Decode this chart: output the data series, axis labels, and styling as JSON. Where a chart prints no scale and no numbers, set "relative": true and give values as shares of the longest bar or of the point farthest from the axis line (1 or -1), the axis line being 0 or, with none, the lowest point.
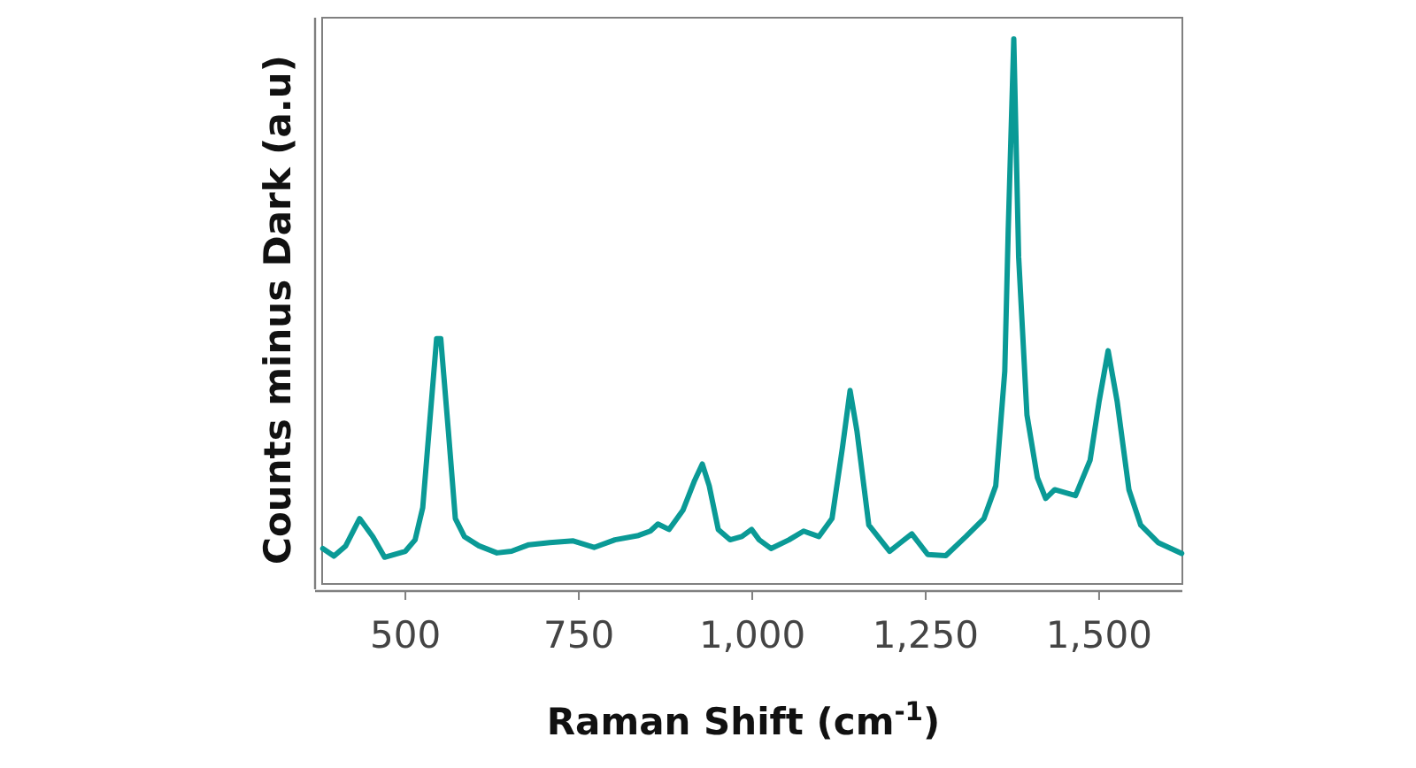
{
  "chart_data": {
    "type": "line",
    "relative": true,
    "xlabel": "Raman Shift (cm$^{-1}$)",
    "ylabel": "Counts minus Dark (a.u)",
    "xlim": [
      380,
      1620
    ],
    "xticks": [
      500,
      750,
      {
        "value": 1000,
        "label": "1,000"
      },
      {
        "value": 1250,
        "label": "1,250"
      },
      {
        "value": 1500,
        "label": "1,500"
      }
    ],
    "grid": false,
    "marker": "none",
    "line_style": "solid",
    "series": [
      {
        "color": "#0a9a96",
        "x": [
          381,
          397,
          414,
          434,
          453,
          470,
          500,
          514,
          525,
          534,
          545,
          551,
          562,
          572,
          585,
          606,
          632,
          653,
          678,
          708,
          742,
          772,
          802,
          836,
          853,
          864,
          880,
          900,
          917,
          928,
          938,
          951,
          968,
          985,
          999,
          1010,
          1027,
          1053,
          1074,
          1096,
          1115,
          1130,
          1141,
          1151,
          1168,
          1198,
          1230,
          1253,
          1279,
          1308,
          1334,
          1351,
          1364,
          1369,
          1377,
          1384,
          1396,
          1411,
          1423,
          1436,
          1466,
          1487,
          1500,
          1513,
          1526,
          1543,
          1560,
          1585,
          1619
        ],
        "values": [
          0.065,
          0.051,
          0.07,
          0.12,
          0.087,
          0.049,
          0.06,
          0.081,
          0.14,
          0.28,
          0.45,
          0.45,
          0.28,
          0.12,
          0.087,
          0.07,
          0.057,
          0.06,
          0.072,
          0.076,
          0.079,
          0.067,
          0.081,
          0.089,
          0.097,
          0.11,
          0.1,
          0.135,
          0.19,
          0.22,
          0.18,
          0.1,
          0.081,
          0.087,
          0.1,
          0.081,
          0.065,
          0.081,
          0.097,
          0.087,
          0.12,
          0.25,
          0.355,
          0.28,
          0.108,
          0.06,
          0.092,
          0.054,
          0.052,
          0.087,
          0.12,
          0.18,
          0.39,
          0.65,
          1.0,
          0.6,
          0.31,
          0.195,
          0.157,
          0.173,
          0.162,
          0.227,
          0.335,
          0.428,
          0.335,
          0.173,
          0.108,
          0.076,
          0.056
        ]
      }
    ]
  }
}
